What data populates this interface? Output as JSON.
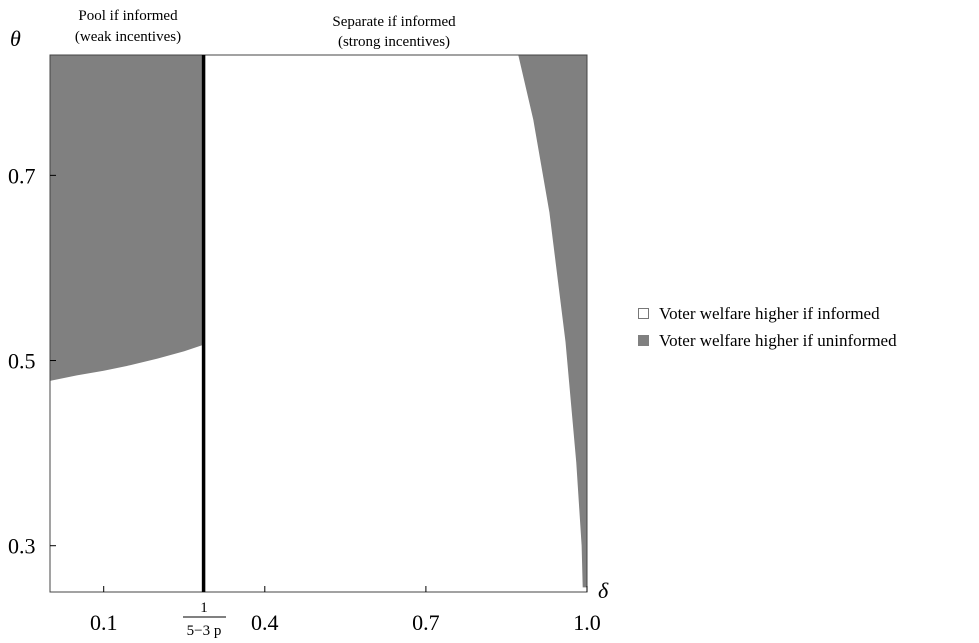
{
  "chart_data": {
    "type": "area",
    "xlabel": "δ",
    "ylabel": "θ",
    "xlim": [
      0.0,
      1.0
    ],
    "ylim": [
      0.25,
      0.83
    ],
    "x_ticks": [
      {
        "value": 0.1,
        "label": "0.1"
      },
      {
        "value": 0.4,
        "label": "0.4"
      },
      {
        "value": 0.7,
        "label": "0.7"
      },
      {
        "value": 1.0,
        "label": "1.0"
      }
    ],
    "y_ticks": [
      {
        "value": 0.3,
        "label": "0.3"
      },
      {
        "value": 0.5,
        "label": "0.5"
      },
      {
        "value": 0.7,
        "label": "0.7"
      }
    ],
    "threshold": {
      "x": 0.286,
      "label_numerator": "1",
      "label_denominator": "5−3 p"
    },
    "region_labels": {
      "left_line1": "Pool if informed",
      "left_line2": "(weak incentives)",
      "right_line1": "Separate if informed",
      "right_line2": "(strong incentives)"
    },
    "boundary_left": [
      {
        "x": 0.0,
        "y": 0.478
      },
      {
        "x": 0.05,
        "y": 0.484
      },
      {
        "x": 0.1,
        "y": 0.489
      },
      {
        "x": 0.15,
        "y": 0.495
      },
      {
        "x": 0.2,
        "y": 0.502
      },
      {
        "x": 0.25,
        "y": 0.51
      },
      {
        "x": 0.286,
        "y": 0.517
      }
    ],
    "boundary_right": [
      {
        "x": 0.872,
        "y": 0.83
      },
      {
        "x": 0.9,
        "y": 0.76
      },
      {
        "x": 0.93,
        "y": 0.66
      },
      {
        "x": 0.96,
        "y": 0.52
      },
      {
        "x": 0.98,
        "y": 0.39
      },
      {
        "x": 0.99,
        "y": 0.3
      },
      {
        "x": 0.992,
        "y": 0.255
      }
    ],
    "legend": [
      {
        "label": "Voter welfare higher if informed",
        "color": "#ffffff"
      },
      {
        "label": "Voter welfare higher if uninformed",
        "color": "#808080"
      }
    ],
    "colors": {
      "shade": "#808080",
      "line": "#000000"
    },
    "legend_position": "right"
  }
}
